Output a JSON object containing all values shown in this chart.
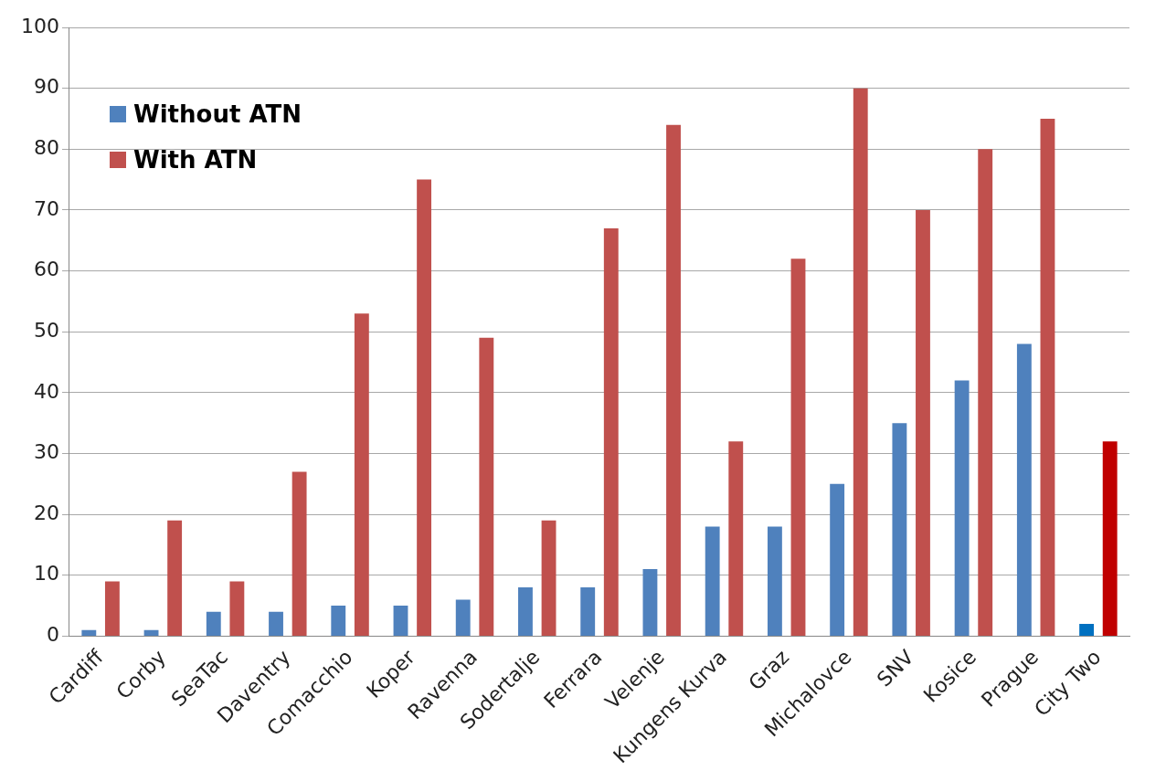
{
  "chart_data": {
    "type": "bar",
    "categories": [
      "Cardiff",
      "Corby",
      "SeaTac",
      "Daventry",
      "Comacchio",
      "Koper",
      "Ravenna",
      "Sodertalje",
      "Ferrara",
      "Velenje",
      "Kungens Kurva",
      "Graz",
      "Michalovce",
      "SNV",
      "Kosice",
      "Prague",
      "City Two"
    ],
    "series": [
      {
        "name": "Without ATN",
        "color": "#4f81bd",
        "colors": [
          "#4f81bd",
          "#4f81bd",
          "#4f81bd",
          "#4f81bd",
          "#4f81bd",
          "#4f81bd",
          "#4f81bd",
          "#4f81bd",
          "#4f81bd",
          "#4f81bd",
          "#4f81bd",
          "#4f81bd",
          "#4f81bd",
          "#4f81bd",
          "#4f81bd",
          "#4f81bd",
          "#0070c0"
        ],
        "values": [
          1,
          1,
          4,
          4,
          5,
          5,
          6,
          8,
          8,
          11,
          18,
          18,
          25,
          35,
          42,
          48,
          2
        ]
      },
      {
        "name": "With ATN",
        "color": "#c0504d",
        "colors": [
          "#c0504d",
          "#c0504d",
          "#c0504d",
          "#c0504d",
          "#c0504d",
          "#c0504d",
          "#c0504d",
          "#c0504d",
          "#c0504d",
          "#c0504d",
          "#c0504d",
          "#c0504d",
          "#c0504d",
          "#c0504d",
          "#c0504d",
          "#c0504d",
          "#c00000"
        ],
        "values": [
          9,
          19,
          9,
          27,
          53,
          75,
          49,
          19,
          67,
          84,
          32,
          62,
          90,
          70,
          80,
          85,
          32
        ]
      }
    ],
    "ylim": [
      0,
      100
    ],
    "yticks": [
      0,
      10,
      20,
      30,
      40,
      50,
      60,
      70,
      80,
      90,
      100
    ],
    "grid": "y",
    "legend": "top left"
  }
}
